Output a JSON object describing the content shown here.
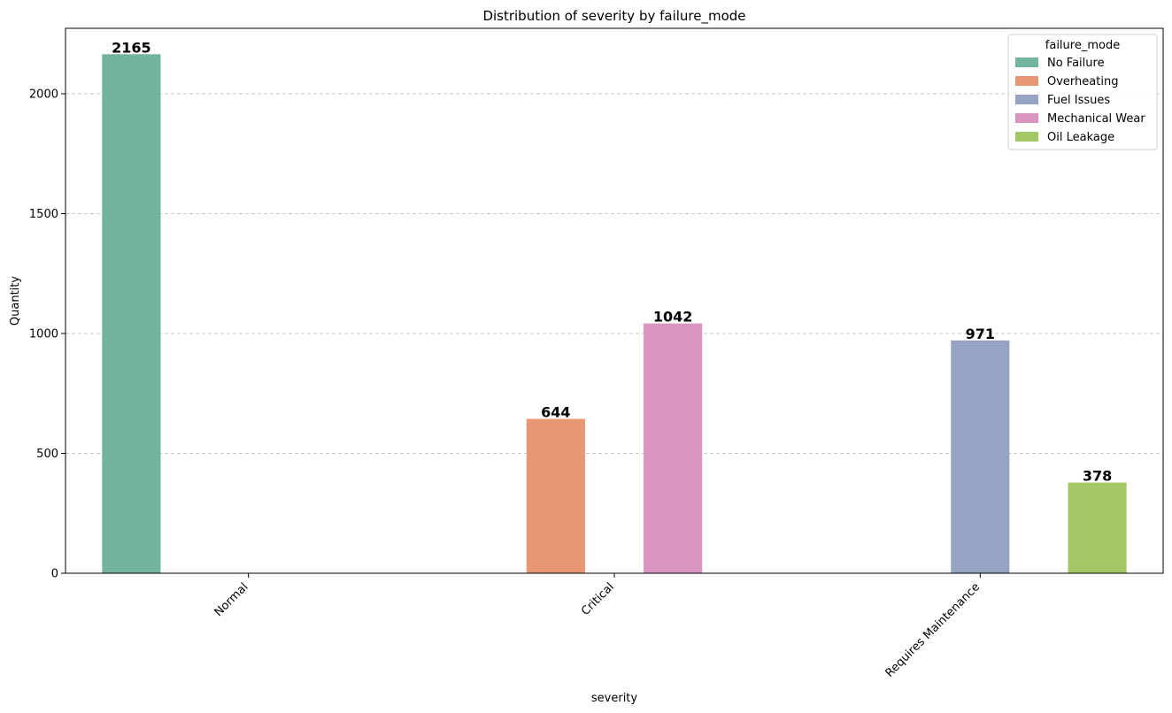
{
  "chart_data": {
    "type": "bar",
    "title": "Distribution of severity by failure_mode",
    "xlabel": "severity",
    "ylabel": "Quantity",
    "categories": [
      "Normal",
      "Critical",
      "Requires Maintenance"
    ],
    "ylim": [
      0,
      2273
    ],
    "yticks": [
      0,
      500,
      1000,
      1500,
      2000
    ],
    "grid": "y-dashed",
    "legend_title": "failure_mode",
    "legend_placement": "top-right",
    "series": [
      {
        "name": "No Failure",
        "color": "#73b4a0",
        "values": [
          2165,
          null,
          null
        ]
      },
      {
        "name": "Overheating",
        "color": "#e89774",
        "values": [
          null,
          644,
          null
        ]
      },
      {
        "name": "Fuel Issues",
        "color": "#96a3c2",
        "values": [
          null,
          null,
          971
        ]
      },
      {
        "name": "Mechanical Wear",
        "color": "#db96bf",
        "values": [
          null,
          1042,
          null
        ]
      },
      {
        "name": "Oil Leakage",
        "color": "#a3c764",
        "values": [
          null,
          null,
          378
        ]
      }
    ]
  }
}
